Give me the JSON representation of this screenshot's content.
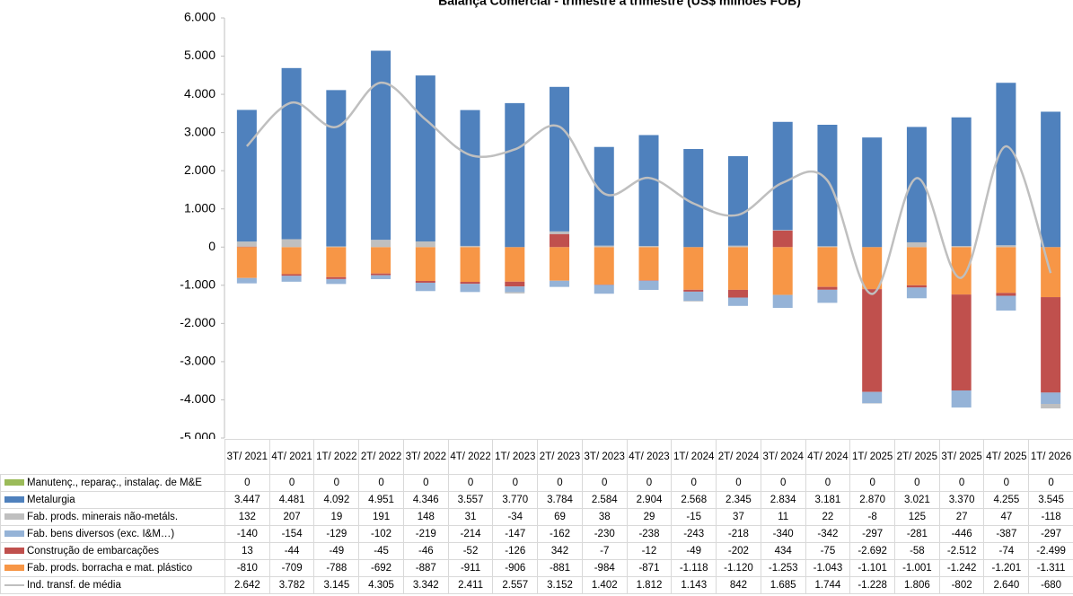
{
  "chart_data": {
    "type": "bar",
    "title": "Balança Comercial - trimestre a trimestre (US$ milhões FOB)",
    "categories": [
      "3T/ 2021",
      "4T/ 2021",
      "1T/ 2022",
      "2T/ 2022",
      "3T/ 2022",
      "4T/ 2022",
      "1T/ 2023",
      "2T/ 2023",
      "3T/ 2023",
      "4T/ 2023",
      "1T/ 2024",
      "2T/ 2024",
      "3T/ 2024",
      "4T/ 2024",
      "1T/ 2025",
      "2T/ 2025",
      "3T/ 2025",
      "4T/ 2025",
      "1T/ 2026"
    ],
    "ylim": [
      -5000,
      6000
    ],
    "yticks": [
      {
        "value": 6000,
        "label": "6.000"
      },
      {
        "value": 5000,
        "label": "5.000"
      },
      {
        "value": 4000,
        "label": "4.000"
      },
      {
        "value": 3000,
        "label": "3.000"
      },
      {
        "value": 2000,
        "label": "2.000"
      },
      {
        "value": 1000,
        "label": "1.000"
      },
      0,
      {
        "value": -1000,
        "label": "-1.000"
      },
      {
        "value": -2000,
        "label": "-2.000"
      },
      {
        "value": -3000,
        "label": "-3.000"
      },
      {
        "value": -4000,
        "label": "-4.000"
      },
      {
        "value": -5000,
        "label": "-5.000"
      }
    ],
    "stacked": true,
    "series": [
      {
        "name": "Manutenç., reparaç., instalaç. de M&E",
        "color": "#9bbb59",
        "values": [
          0,
          0,
          0,
          0,
          0,
          0,
          0,
          0,
          0,
          0,
          0,
          0,
          0,
          0,
          0,
          0,
          0,
          0,
          0
        ],
        "value_labels": [
          "0",
          "0",
          "0",
          "0",
          "0",
          "0",
          "0",
          "0",
          "0",
          "0",
          "0",
          "0",
          "0",
          "0",
          "0",
          "0",
          "0",
          "0",
          "0"
        ]
      },
      {
        "name": "Metalurgia",
        "color": "#4f81bd",
        "values": [
          3447,
          4481,
          4092,
          4951,
          4346,
          3557,
          3770,
          3784,
          2584,
          2904,
          2568,
          2345,
          2834,
          3181,
          2870,
          3021,
          3370,
          4255,
          3545
        ],
        "value_labels": [
          "3.447",
          "4.481",
          "4.092",
          "4.951",
          "4.346",
          "3.557",
          "3.770",
          "3.784",
          "2.584",
          "2.904",
          "2.568",
          "2.345",
          "2.834",
          "3.181",
          "2.870",
          "3.021",
          "3.370",
          "4.255",
          "3.545"
        ]
      },
      {
        "name": "Fab. prods. minerais não-metáls.",
        "color": "#bfbfbf",
        "values": [
          132,
          207,
          19,
          191,
          148,
          31,
          -34,
          69,
          38,
          29,
          -15,
          37,
          11,
          22,
          -8,
          125,
          27,
          47,
          -118
        ],
        "value_labels": [
          "132",
          "207",
          "19",
          "191",
          "148",
          "31",
          "-34",
          "69",
          "38",
          "29",
          "-15",
          "37",
          "11",
          "22",
          "-8",
          "125",
          "27",
          "47",
          "-118"
        ]
      },
      {
        "name": "Fab. bens diversos (exc. I&M…)",
        "color": "#95b3d7",
        "values": [
          -140,
          -154,
          -129,
          -102,
          -219,
          -214,
          -147,
          -162,
          -230,
          -238,
          -243,
          -218,
          -340,
          -342,
          -297,
          -281,
          -446,
          -387,
          -297
        ],
        "value_labels": [
          "-140",
          "-154",
          "-129",
          "-102",
          "-219",
          "-214",
          "-147",
          "-162",
          "-230",
          "-238",
          "-243",
          "-218",
          "-340",
          "-342",
          "-297",
          "-281",
          "-446",
          "-387",
          "-297"
        ]
      },
      {
        "name": "Construção de embarcações",
        "color": "#c0504d",
        "values": [
          13,
          -44,
          -49,
          -45,
          -46,
          -52,
          -126,
          342,
          -7,
          -12,
          -49,
          -202,
          434,
          -75,
          -2692,
          -58,
          -2512,
          -74,
          -2499
        ],
        "value_labels": [
          "13",
          "-44",
          "-49",
          "-45",
          "-46",
          "-52",
          "-126",
          "342",
          "-7",
          "-12",
          "-49",
          "-202",
          "434",
          "-75",
          "-2.692",
          "-58",
          "-2.512",
          "-74",
          "-2.499"
        ]
      },
      {
        "name": "Fab. prods. borracha e mat. plástico",
        "color": "#f79646",
        "values": [
          -810,
          -709,
          -788,
          -692,
          -887,
          -911,
          -906,
          -881,
          -984,
          -871,
          -1118,
          -1120,
          -1253,
          -1043,
          -1101,
          -1001,
          -1242,
          -1201,
          -1311
        ],
        "value_labels": [
          "-810",
          "-709",
          "-788",
          "-692",
          "-887",
          "-911",
          "-906",
          "-881",
          "-984",
          "-871",
          "-1.118",
          "-1.120",
          "-1.253",
          "-1.043",
          "-1.101",
          "-1.001",
          "-1.242",
          "-1.201",
          "-1.311"
        ]
      },
      {
        "name": "Ind. transf. de média",
        "color": "#bfbfbf",
        "type": "line",
        "values": [
          2642,
          3782,
          3145,
          4305,
          3342,
          2411,
          2557,
          3152,
          1402,
          1812,
          1143,
          842,
          1685,
          1744,
          -1228,
          1806,
          -802,
          2640,
          -680
        ],
        "value_labels": [
          "2.642",
          "3.782",
          "3.145",
          "4.305",
          "3.342",
          "2.411",
          "2.557",
          "3.152",
          "1.402",
          "1.812",
          "1.143",
          "842",
          "1.685",
          "1.744",
          "-1.228",
          "1.806",
          "-802",
          "2.640",
          "-680"
        ]
      }
    ]
  }
}
